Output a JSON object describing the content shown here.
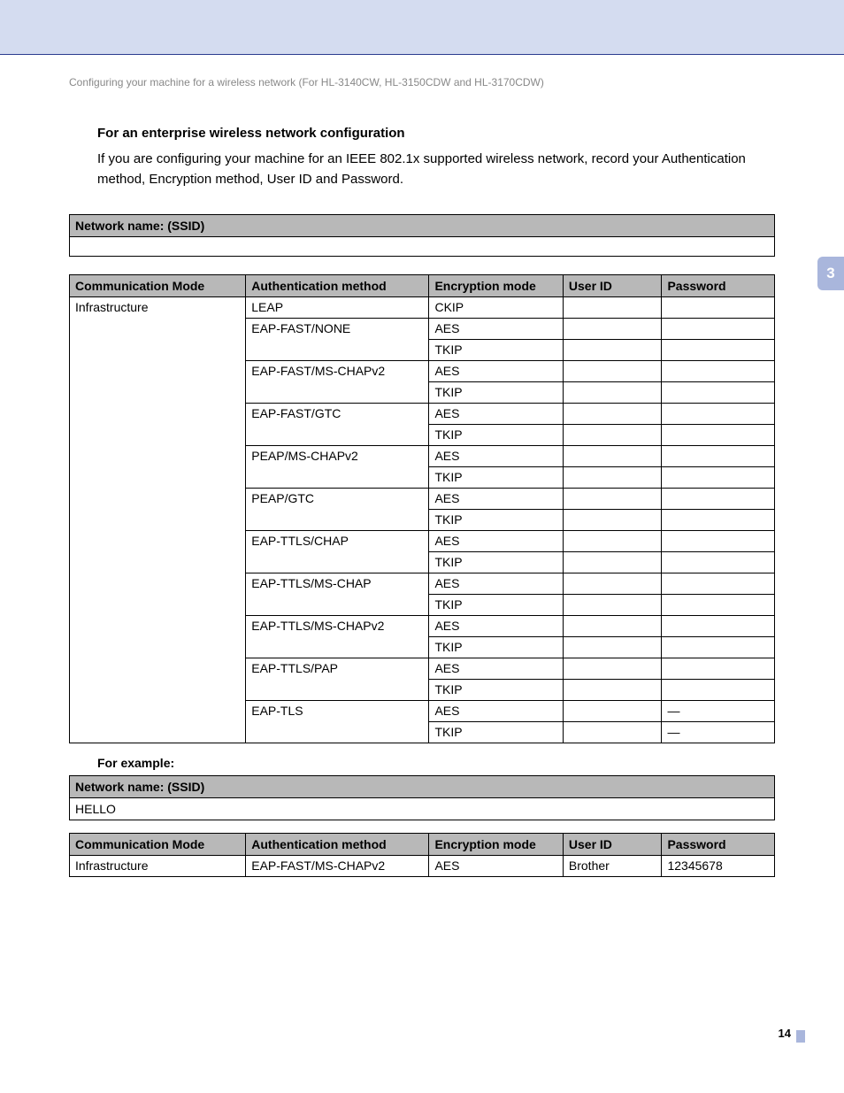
{
  "page": {
    "breadcrumb": "Configuring your machine for a wireless network (For HL-3140CW, HL-3150CDW and HL-3170CDW)",
    "section_number": "3",
    "page_number": "14",
    "heading": "For an enterprise wireless network configuration",
    "lead": "If you are configuring your machine for an IEEE 802.1x supported wireless network, record your Authentication method, Encryption method, User ID and Password.",
    "example_heading": "For example:"
  },
  "ssid_table": {
    "header": "Network name: (SSID)",
    "value": ""
  },
  "main_table": {
    "columns": [
      "Communication Mode",
      "Authentication method",
      "Encryption mode",
      "User ID",
      "Password"
    ],
    "col_widths": [
      "25%",
      "26%",
      "19%",
      "14%",
      "16%"
    ],
    "header_bg": "#b8b8b8",
    "comm_mode": "Infrastructure",
    "groups": [
      {
        "auth": "LEAP",
        "enc": [
          "CKIP"
        ],
        "pwd": [
          ""
        ]
      },
      {
        "auth": "EAP-FAST/NONE",
        "enc": [
          "AES",
          "TKIP"
        ],
        "pwd": [
          "",
          ""
        ]
      },
      {
        "auth": "EAP-FAST/MS-CHAPv2",
        "enc": [
          "AES",
          "TKIP"
        ],
        "pwd": [
          "",
          ""
        ]
      },
      {
        "auth": "EAP-FAST/GTC",
        "enc": [
          "AES",
          "TKIP"
        ],
        "pwd": [
          "",
          ""
        ]
      },
      {
        "auth": "PEAP/MS-CHAPv2",
        "enc": [
          "AES",
          "TKIP"
        ],
        "pwd": [
          "",
          ""
        ]
      },
      {
        "auth": "PEAP/GTC",
        "enc": [
          "AES",
          "TKIP"
        ],
        "pwd": [
          "",
          ""
        ]
      },
      {
        "auth": "EAP-TTLS/CHAP",
        "enc": [
          "AES",
          "TKIP"
        ],
        "pwd": [
          "",
          ""
        ]
      },
      {
        "auth": "EAP-TTLS/MS-CHAP",
        "enc": [
          "AES",
          "TKIP"
        ],
        "pwd": [
          "",
          ""
        ]
      },
      {
        "auth": "EAP-TTLS/MS-CHAPv2",
        "enc": [
          "AES",
          "TKIP"
        ],
        "pwd": [
          "",
          ""
        ]
      },
      {
        "auth": "EAP-TTLS/PAP",
        "enc": [
          "AES",
          "TKIP"
        ],
        "pwd": [
          "",
          ""
        ]
      },
      {
        "auth": "EAP-TLS",
        "enc": [
          "AES",
          "TKIP"
        ],
        "pwd": [
          "—",
          "—"
        ]
      }
    ]
  },
  "example_ssid": {
    "header": "Network name: (SSID)",
    "value": "HELLO"
  },
  "example_table": {
    "columns": [
      "Communication Mode",
      "Authentication method",
      "Encryption mode",
      "User ID",
      "Password"
    ],
    "col_widths": [
      "25%",
      "26%",
      "19%",
      "14%",
      "16%"
    ],
    "row": [
      "Infrastructure",
      "EAP-FAST/MS-CHAPv2",
      "AES",
      "Brother",
      "12345678"
    ]
  },
  "colors": {
    "banner_bg": "#d4dcf0",
    "banner_border": "#2a3c8f",
    "tab_bg": "#a9b6dc",
    "breadcrumb_text": "#888888"
  }
}
